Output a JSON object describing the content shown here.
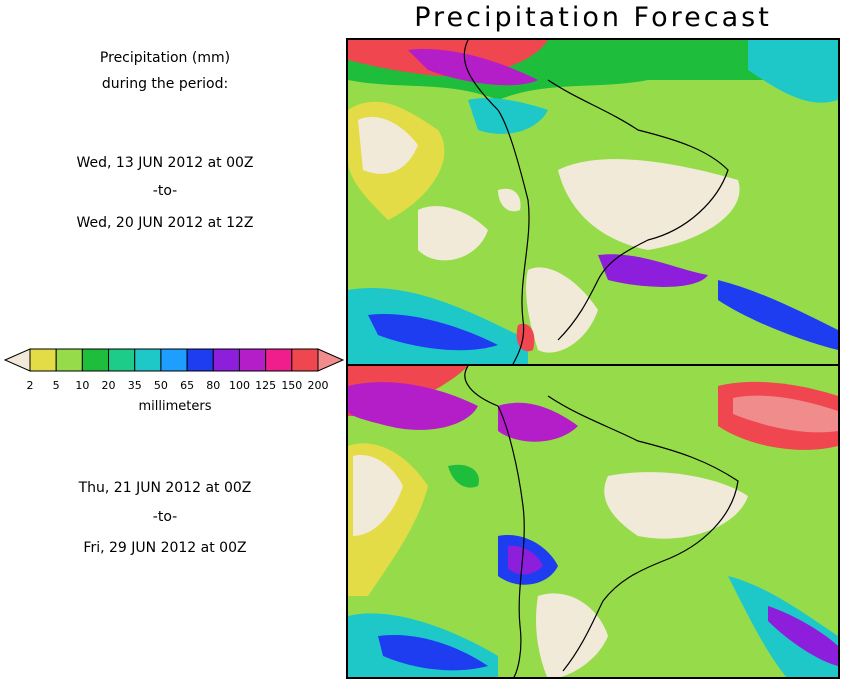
{
  "title": "Precipitation Forecast",
  "header": {
    "line1": "Precipitation (mm)",
    "line2": "during the period:"
  },
  "period1": {
    "start": "Wed, 13 JUN 2012 at 00Z",
    "sep": "-to-",
    "end": "Wed, 20 JUN 2012 at 12Z"
  },
  "period2": {
    "start": "Thu, 21 JUN 2012 at 00Z",
    "sep": "-to-",
    "end": "Fri, 29 JUN 2012 at 00Z"
  },
  "legend": {
    "unit": "millimeters",
    "ticks": [
      "2",
      "5",
      "10",
      "20",
      "35",
      "50",
      "65",
      "80",
      "100",
      "125",
      "150",
      "200"
    ],
    "colors": [
      "#f2ead8",
      "#e4dc46",
      "#96dc4a",
      "#1ebe3c",
      "#1ecc8a",
      "#1ec8c8",
      "#1e9eff",
      "#1e3cf0",
      "#8c1edc",
      "#b41ec8",
      "#f01e8c",
      "#f04650",
      "#f08c8c"
    ]
  }
}
